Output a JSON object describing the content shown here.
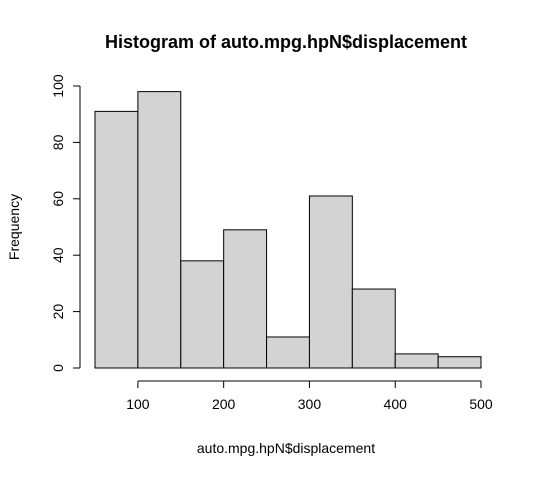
{
  "chart_data": {
    "type": "bar",
    "title": "Histogram of auto.mpg.hpN$displacement",
    "xlabel": "auto.mpg.hpN$displacement",
    "ylabel": "Frequency",
    "bins": [
      {
        "start": 50,
        "end": 100,
        "count": 91
      },
      {
        "start": 100,
        "end": 150,
        "count": 98
      },
      {
        "start": 150,
        "end": 200,
        "count": 38
      },
      {
        "start": 200,
        "end": 250,
        "count": 49
      },
      {
        "start": 250,
        "end": 300,
        "count": 11
      },
      {
        "start": 300,
        "end": 350,
        "count": 61
      },
      {
        "start": 350,
        "end": 400,
        "count": 28
      },
      {
        "start": 400,
        "end": 450,
        "count": 5
      },
      {
        "start": 450,
        "end": 500,
        "count": 4
      }
    ],
    "xticks": [
      100,
      200,
      300,
      400,
      500
    ],
    "yticks": [
      0,
      20,
      40,
      60,
      80,
      100
    ],
    "xlim": [
      50,
      500
    ],
    "ylim": [
      0,
      100
    ],
    "bar_color": "#d3d3d3",
    "grid": false
  }
}
